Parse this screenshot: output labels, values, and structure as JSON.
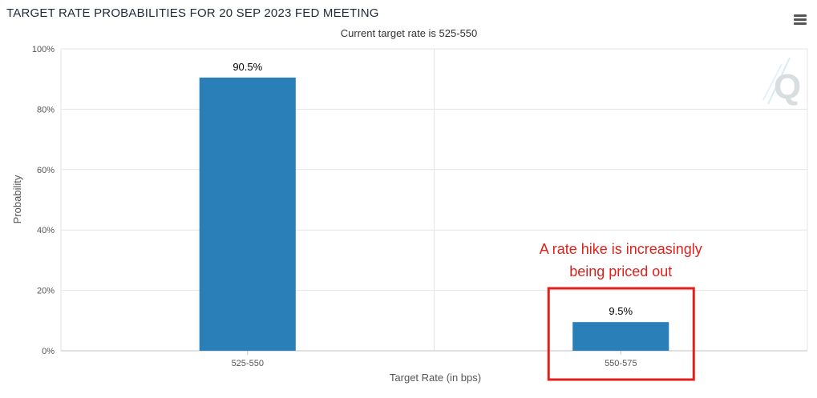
{
  "chart_data": {
    "type": "bar",
    "title": "TARGET RATE PROBABILITIES FOR 20 SEP 2023 FED MEETING",
    "subtitle": "Current target rate is 525-550",
    "xlabel": "Target Rate (in bps)",
    "ylabel": "Probability",
    "categories": [
      "525-550",
      "550-575"
    ],
    "values": [
      90.5,
      9.5
    ],
    "data_labels": [
      "90.5%",
      "9.5%"
    ],
    "ylim": [
      0,
      100
    ],
    "yticks": [
      0,
      20,
      40,
      60,
      80,
      100
    ],
    "ytick_labels": [
      "0%",
      "20%",
      "40%",
      "60%",
      "80%",
      "100%"
    ],
    "grid": true,
    "bar_color": "#2b7fb8",
    "annotation": {
      "lines": [
        "A rate hike is increasingly",
        "being priced out"
      ],
      "color": "#e0201b",
      "highlight_category": "550-575"
    },
    "logo_text": "Q",
    "menu_icon": "hamburger-menu-icon"
  }
}
